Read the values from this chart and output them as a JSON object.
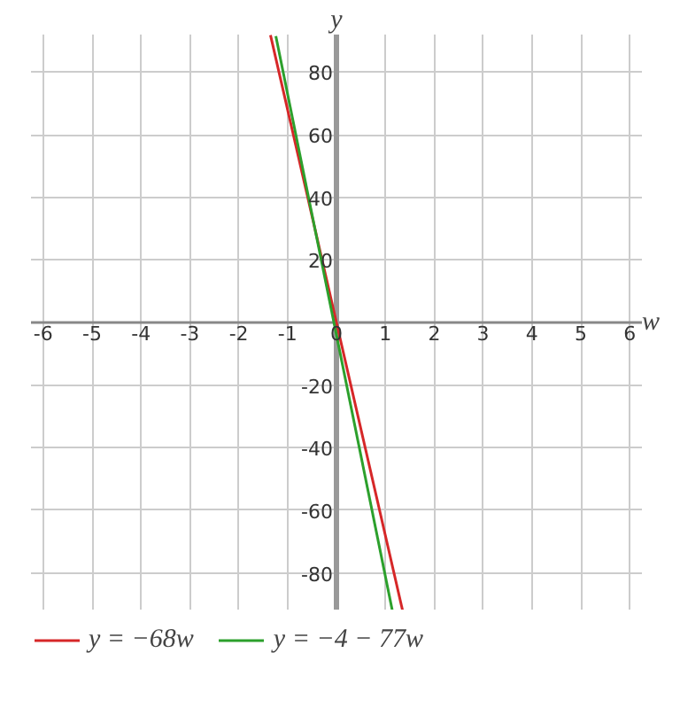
{
  "chart_data": {
    "type": "line",
    "xlabel": "w",
    "ylabel": "y",
    "xlim": [
      -6.25,
      6.25
    ],
    "ylim": [
      -92,
      92
    ],
    "xticks": [
      -6,
      -5,
      -4,
      -3,
      -2,
      -1,
      0,
      1,
      2,
      3,
      4,
      5,
      6
    ],
    "yticks": [
      -80,
      -60,
      -40,
      -20,
      20,
      40,
      60,
      80
    ],
    "grid": true,
    "legend": "bottom",
    "series": [
      {
        "name": "y = −68w",
        "color": "#d62728",
        "x": [
          -1.35,
          1.35
        ],
        "values": [
          91.8,
          -91.8
        ]
      },
      {
        "name": "y = −4 − 77w",
        "color": "#2ca02c",
        "x": [
          -1.24,
          1.14
        ],
        "values": [
          91.5,
          -91.8
        ]
      }
    ]
  }
}
